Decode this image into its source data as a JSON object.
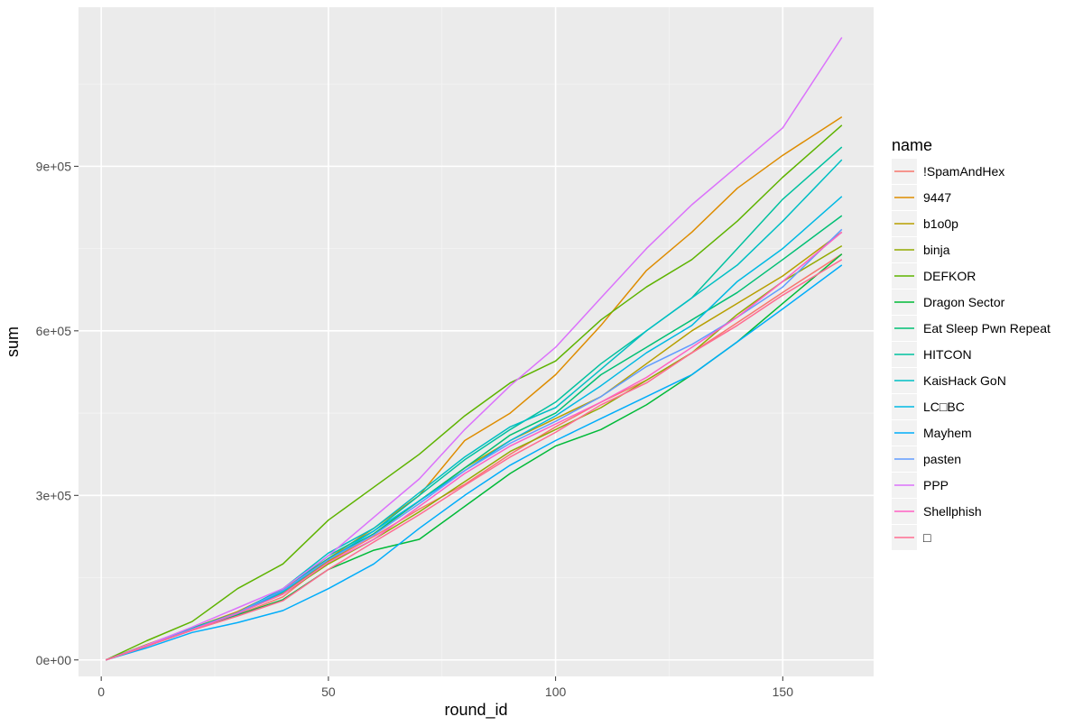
{
  "chart_data": {
    "type": "line",
    "title": "",
    "xlabel": "round_id",
    "ylabel": "sum",
    "xlim": [
      -5,
      170
    ],
    "ylim": [
      -30000,
      1190000
    ],
    "x_ticks": [
      0,
      50,
      100,
      150
    ],
    "x_tick_labels": [
      "0",
      "50",
      "100",
      "150"
    ],
    "y_ticks": [
      0,
      300000,
      600000,
      900000
    ],
    "y_tick_labels": [
      "0e+00",
      "3e+05",
      "6e+05",
      "9e+05"
    ],
    "grid": true,
    "legend_title": "name",
    "legend_position": "right",
    "x": [
      1,
      10,
      20,
      30,
      40,
      50,
      60,
      70,
      80,
      90,
      100,
      110,
      120,
      130,
      140,
      150,
      163
    ],
    "series": [
      {
        "name": "!SpamAndHex",
        "color": "#F8766D",
        "values": [
          0,
          25000,
          55000,
          82000,
          115000,
          180000,
          225000,
          275000,
          320000,
          375000,
          425000,
          470000,
          510000,
          560000,
          615000,
          670000,
          740000
        ]
      },
      {
        "name": "9447",
        "color": "#DE8C00",
        "values": [
          0,
          28000,
          58000,
          88000,
          128000,
          185000,
          240000,
          300000,
          400000,
          450000,
          520000,
          610000,
          710000,
          780000,
          860000,
          920000,
          990000
        ]
      },
      {
        "name": "b1o0p",
        "color": "#B79F00",
        "values": [
          0,
          25000,
          55000,
          84000,
          122000,
          180000,
          230000,
          290000,
          350000,
          400000,
          440000,
          480000,
          540000,
          600000,
          650000,
          700000,
          780000
        ]
      },
      {
        "name": "binja",
        "color": "#93AA00",
        "values": [
          0,
          27000,
          57000,
          85000,
          120000,
          175000,
          220000,
          270000,
          325000,
          380000,
          420000,
          460000,
          510000,
          560000,
          630000,
          690000,
          755000
        ]
      },
      {
        "name": "DEFKOR",
        "color": "#5EB300",
        "values": [
          0,
          35000,
          70000,
          130000,
          175000,
          255000,
          315000,
          375000,
          445000,
          505000,
          545000,
          620000,
          680000,
          730000,
          800000,
          880000,
          975000
        ]
      },
      {
        "name": "Dragon Sector",
        "color": "#00BA38",
        "values": [
          0,
          27000,
          57000,
          82000,
          110000,
          165000,
          200000,
          220000,
          280000,
          340000,
          390000,
          420000,
          465000,
          520000,
          580000,
          650000,
          740000
        ]
      },
      {
        "name": "Eat Sleep Pwn Repeat",
        "color": "#00BF74",
        "values": [
          0,
          27000,
          58000,
          86000,
          125000,
          185000,
          230000,
          290000,
          350000,
          410000,
          450000,
          520000,
          570000,
          620000,
          670000,
          730000,
          810000
        ]
      },
      {
        "name": "HITCON",
        "color": "#00C19F",
        "values": [
          0,
          26000,
          57000,
          85000,
          125000,
          190000,
          235000,
          300000,
          365000,
          420000,
          470000,
          540000,
          600000,
          660000,
          750000,
          840000,
          935000
        ]
      },
      {
        "name": "KaisHack GoN",
        "color": "#00BFC4",
        "values": [
          0,
          26000,
          57000,
          86000,
          130000,
          195000,
          240000,
          305000,
          370000,
          425000,
          460000,
          530000,
          600000,
          660000,
          720000,
          800000,
          912000
        ]
      },
      {
        "name": "LC□BC",
        "color": "#00B9E3",
        "values": [
          0,
          26000,
          56000,
          84000,
          124000,
          183000,
          235000,
          290000,
          345000,
          400000,
          445000,
          500000,
          560000,
          610000,
          690000,
          750000,
          845000
        ]
      },
      {
        "name": "Mayhem",
        "color": "#00ADFA",
        "values": [
          0,
          22000,
          50000,
          68000,
          90000,
          130000,
          175000,
          240000,
          300000,
          355000,
          400000,
          440000,
          480000,
          520000,
          580000,
          640000,
          720000
        ]
      },
      {
        "name": "pasten",
        "color": "#619CFF",
        "values": [
          0,
          26000,
          56000,
          86000,
          127000,
          183000,
          228000,
          285000,
          345000,
          395000,
          435000,
          480000,
          535000,
          575000,
          625000,
          680000,
          785000
        ]
      },
      {
        "name": "PPP",
        "color": "#DB72FB",
        "values": [
          0,
          27000,
          60000,
          95000,
          130000,
          190000,
          260000,
          330000,
          420000,
          500000,
          570000,
          660000,
          750000,
          830000,
          900000,
          970000,
          1135000
        ]
      },
      {
        "name": "Shellphish",
        "color": "#FF61C3",
        "values": [
          0,
          25000,
          55000,
          85000,
          120000,
          178000,
          220000,
          280000,
          340000,
          390000,
          430000,
          470000,
          515000,
          570000,
          625000,
          690000,
          780000
        ]
      },
      {
        "name": "□",
        "color": "#FF6C91",
        "values": [
          0,
          25000,
          54000,
          80000,
          108000,
          165000,
          215000,
          265000,
          318000,
          370000,
          415000,
          465000,
          505000,
          560000,
          610000,
          665000,
          730000
        ]
      }
    ]
  }
}
